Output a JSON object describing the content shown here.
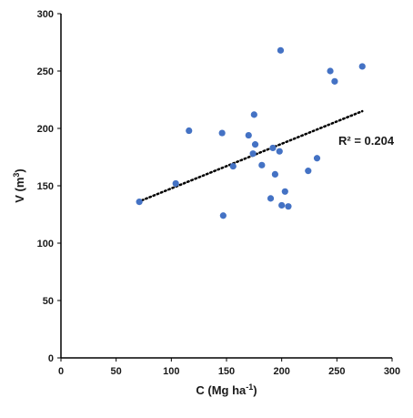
{
  "chart_data": {
    "type": "scatter",
    "title": "",
    "xlabel": {
      "main": "C (Mg ha",
      "sup": "-1",
      "tail": ")"
    },
    "ylabel": {
      "main": "V (m",
      "sup": "3",
      "tail": ")"
    },
    "xlim": [
      0,
      300
    ],
    "ylim": [
      0,
      300
    ],
    "xticks": [
      0,
      50,
      100,
      150,
      200,
      250,
      300
    ],
    "yticks": [
      0,
      50,
      100,
      150,
      200,
      250,
      300
    ],
    "grid": false,
    "marker_color": "#4472C4",
    "trendline": {
      "style": "dotted",
      "color": "#000000",
      "x": [
        70,
        273
      ],
      "y": [
        136,
        215
      ]
    },
    "annotation": "R² = 0.204",
    "points": [
      {
        "x": 71,
        "y": 136
      },
      {
        "x": 104,
        "y": 152
      },
      {
        "x": 116,
        "y": 198
      },
      {
        "x": 146,
        "y": 196
      },
      {
        "x": 147,
        "y": 124
      },
      {
        "x": 156,
        "y": 167
      },
      {
        "x": 170,
        "y": 194
      },
      {
        "x": 174,
        "y": 178
      },
      {
        "x": 175,
        "y": 212
      },
      {
        "x": 176,
        "y": 186
      },
      {
        "x": 182,
        "y": 168
      },
      {
        "x": 190,
        "y": 139
      },
      {
        "x": 192,
        "y": 183
      },
      {
        "x": 194,
        "y": 160
      },
      {
        "x": 198,
        "y": 180
      },
      {
        "x": 199,
        "y": 268
      },
      {
        "x": 200,
        "y": 133
      },
      {
        "x": 203,
        "y": 145
      },
      {
        "x": 206,
        "y": 132
      },
      {
        "x": 224,
        "y": 163
      },
      {
        "x": 232,
        "y": 174
      },
      {
        "x": 244,
        "y": 250
      },
      {
        "x": 248,
        "y": 241
      },
      {
        "x": 273,
        "y": 254
      }
    ]
  }
}
